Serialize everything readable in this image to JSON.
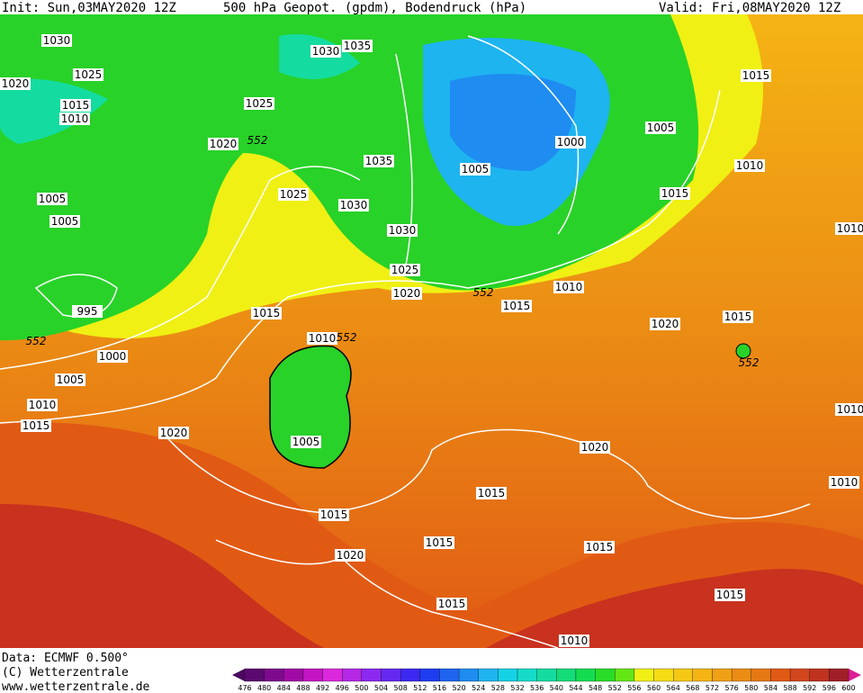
{
  "header": {
    "init": "Init: Sun,03MAY2020 12Z",
    "title": "500 hPa Geopot. (gpdm), Bodendruck (hPa)",
    "valid": "Valid: Fri,08MAY2020 12Z"
  },
  "map": {
    "isobar_labels": [
      1030,
      1025,
      1020,
      1015,
      1010,
      1005,
      1005,
      995,
      1000,
      1005,
      1010,
      1015,
      1020,
      1030,
      1035,
      1025,
      1020,
      1025,
      1030,
      1035,
      1030,
      1025,
      1020,
      1015,
      1010,
      1005,
      1000,
      1005,
      1005,
      1015,
      1010,
      1015,
      1010,
      1015,
      1020,
      1015,
      1020,
      1015,
      1015,
      1015,
      1020,
      1015,
      1015,
      1015,
      1010,
      1010,
      1010,
      1010
    ],
    "geopotential_labels": [
      552,
      552,
      552,
      552,
      552
    ]
  },
  "footer": {
    "data": "Data: ECMWF   0.500°",
    "copyright": "(C) Wetterzentrale",
    "url": "www.wetterzentrale.de"
  },
  "colorbar": {
    "labels": [
      476,
      480,
      484,
      488,
      492,
      496,
      500,
      504,
      508,
      512,
      516,
      520,
      524,
      528,
      532,
      536,
      540,
      544,
      548,
      552,
      556,
      560,
      564,
      568,
      572,
      576,
      580,
      584,
      588,
      592,
      596,
      600
    ],
    "colors": [
      "#5a0a6e",
      "#7d0a8c",
      "#a00aa5",
      "#c314c3",
      "#dc28dc",
      "#b428e6",
      "#8c28f0",
      "#6428f0",
      "#3c28f0",
      "#1e3cf0",
      "#1e64f0",
      "#1e8cf0",
      "#1eb4f0",
      "#14d2e6",
      "#14dcc8",
      "#14dca0",
      "#14dc78",
      "#14dc50",
      "#28dc28",
      "#64e614",
      "#f0f014",
      "#f5dc14",
      "#f5c814",
      "#f5b414",
      "#f0a014",
      "#eb8c14",
      "#e67814",
      "#e15a14",
      "#d2461e",
      "#be321e",
      "#a01e28"
    ]
  }
}
